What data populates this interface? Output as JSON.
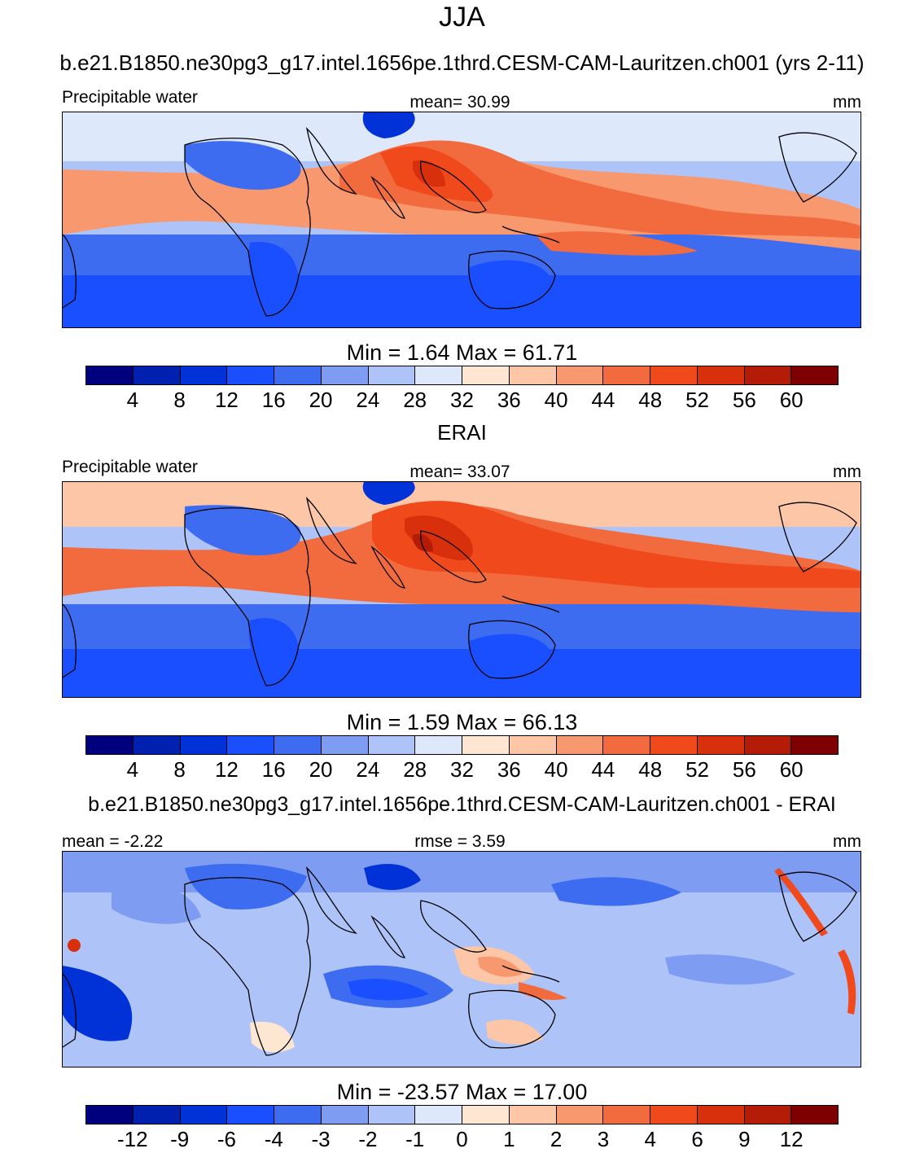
{
  "figure": {
    "season": "JJA",
    "subtitle": "b.e21.B1850.ne30pg3_g17.intel.1656pe.1thrd.CESM-CAM-Lauritzen.ch001 (yrs 2-11)"
  },
  "panels": [
    {
      "left_label": "Precipitable water",
      "center_label": "mean=  30.99",
      "right_label": "mm",
      "minmax": "Min =   1.64 Max =  61.71",
      "colorbar_ticks": [
        "4",
        "8",
        "12",
        "16",
        "20",
        "24",
        "28",
        "32",
        "36",
        "40",
        "44",
        "48",
        "52",
        "56",
        "60"
      ]
    },
    {
      "header": "ERAI",
      "left_label": "Precipitable water",
      "center_label": "mean=  33.07",
      "right_label": "mm",
      "minmax": "Min =   1.59 Max =  66.13",
      "colorbar_ticks": [
        "4",
        "8",
        "12",
        "16",
        "20",
        "24",
        "28",
        "32",
        "36",
        "40",
        "44",
        "48",
        "52",
        "56",
        "60"
      ]
    },
    {
      "header": "b.e21.B1850.ne30pg3_g17.intel.1656pe.1thrd.CESM-CAM-Lauritzen.ch001 - ERAI",
      "left_label": "mean =  -2.22",
      "center_label": "rmse =   3.59",
      "right_label": "mm",
      "minmax": "Min = -23.57 Max =  17.00",
      "colorbar_ticks": [
        "-12",
        "-9",
        "-6",
        "-4",
        "-3",
        "-2",
        "-1",
        "0",
        "1",
        "2",
        "3",
        "4",
        "6",
        "9",
        "12"
      ]
    }
  ],
  "colors": {
    "scale": [
      "#00007f",
      "#0020b0",
      "#0032d8",
      "#1a4fff",
      "#3d6cf0",
      "#7d9cf2",
      "#aec4f8",
      "#dde8fb",
      "#fde6d2",
      "#fcc6a7",
      "#f8986e",
      "#f26b3e",
      "#f0491c",
      "#d8300c",
      "#b41c08",
      "#7f0000"
    ],
    "land_outline": "#000000"
  }
}
